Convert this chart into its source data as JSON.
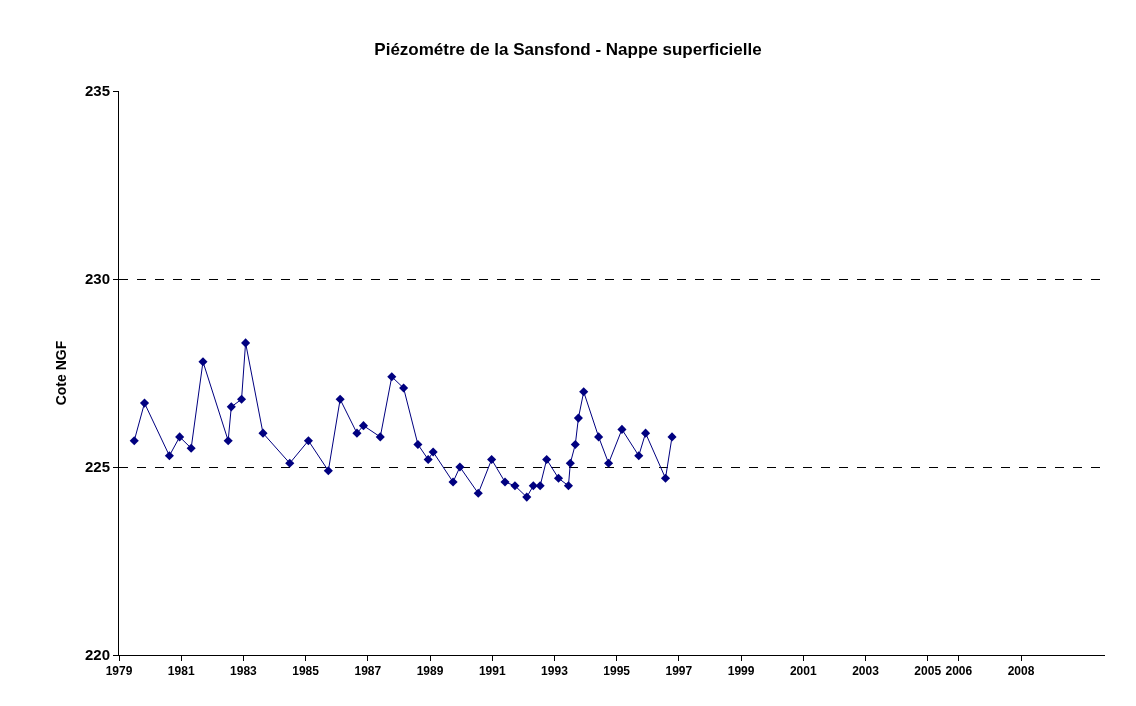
{
  "chart_data": {
    "type": "line",
    "title": "Piézométre de la Sansfond - Nappe superficielle",
    "ylabel": "Cote NGF",
    "xlim": [
      1979,
      2010.7
    ],
    "xticks": [
      {
        "value": 1979,
        "label": "1979"
      },
      {
        "value": 1981,
        "label": "1981"
      },
      {
        "value": 1983,
        "label": "1983"
      },
      {
        "value": 1985,
        "label": "1985"
      },
      {
        "value": 1987,
        "label": "1987"
      },
      {
        "value": 1989,
        "label": "1989"
      },
      {
        "value": 1991,
        "label": "1991"
      },
      {
        "value": 1993,
        "label": "1993"
      },
      {
        "value": 1995,
        "label": "1995"
      },
      {
        "value": 1997,
        "label": "1997"
      },
      {
        "value": 1999,
        "label": "1999"
      },
      {
        "value": 2001,
        "label": "2001"
      },
      {
        "value": 2003,
        "label": "2003"
      },
      {
        "value": 2005,
        "label": "2005"
      },
      {
        "value": 2006,
        "label": "2006"
      },
      {
        "value": 2008,
        "label": "2008"
      }
    ],
    "ylim": [
      220,
      235
    ],
    "yticks": [
      220,
      225,
      230,
      235
    ],
    "grid": "y",
    "marker": "diamond",
    "line_style": "solid",
    "series": [
      {
        "color": "#000080",
        "x": [
          1979.49,
          1979.82,
          1980.62,
          1980.95,
          1981.32,
          1981.7,
          1982.51,
          1982.61,
          1982.94,
          1983.07,
          1983.63,
          1984.49,
          1985.09,
          1985.73,
          1986.11,
          1986.65,
          1986.86,
          1987.4,
          1987.77,
          1988.15,
          1988.61,
          1988.94,
          1989.1,
          1989.74,
          1989.96,
          1990.55,
          1990.98,
          1991.41,
          1991.73,
          1992.11,
          1992.32,
          1992.54,
          1992.75,
          1993.13,
          1993.45,
          1993.51,
          1993.67,
          1993.77,
          1993.94,
          1994.42,
          1994.74,
          1995.17,
          1995.71,
          1995.93,
          1996.57,
          1996.78
        ],
        "values": [
          225.7,
          226.7,
          225.3,
          225.8,
          225.5,
          227.8,
          225.7,
          226.6,
          226.8,
          228.3,
          225.9,
          225.1,
          225.7,
          224.9,
          226.8,
          225.9,
          226.1,
          225.8,
          227.4,
          227.1,
          225.6,
          225.2,
          225.4,
          224.6,
          225.0,
          224.3,
          225.2,
          224.6,
          224.5,
          224.2,
          224.5,
          224.5,
          225.2,
          224.7,
          224.5,
          225.1,
          225.6,
          226.3,
          227.0,
          225.8,
          225.1,
          226.0,
          225.3,
          225.9,
          224.7,
          225.8
        ]
      }
    ]
  }
}
